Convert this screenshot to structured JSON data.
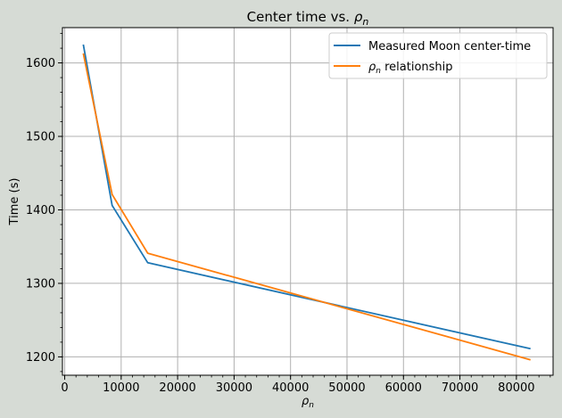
{
  "chart_data": {
    "type": "line",
    "title_prefix": "Center time vs. ",
    "title_symbol": "ρ",
    "title_subscript": "n",
    "xlabel_symbol": "ρ",
    "xlabel_subscript": "n",
    "ylabel": "Time (s)",
    "xlim": [
      -400,
      86500
    ],
    "ylim": [
      1175,
      1648
    ],
    "xticks": [
      0,
      10000,
      20000,
      30000,
      40000,
      50000,
      60000,
      70000,
      80000
    ],
    "yticks": [
      1200,
      1300,
      1400,
      1500,
      1600
    ],
    "grid": true,
    "legend_position": "top-right",
    "series": [
      {
        "name": "Measured Moon center-time",
        "color": "#1f77b4",
        "x": [
          3300,
          8400,
          14700,
          82500
        ],
        "y": [
          1625,
          1406,
          1328,
          1211
        ]
      },
      {
        "name_symbol": "ρ",
        "name_subscript": "n",
        "name_suffix": " relationship",
        "color": "#ff7f0e",
        "x": [
          3300,
          8400,
          14700,
          82500
        ],
        "y": [
          1613,
          1421,
          1341,
          1196
        ]
      }
    ]
  }
}
